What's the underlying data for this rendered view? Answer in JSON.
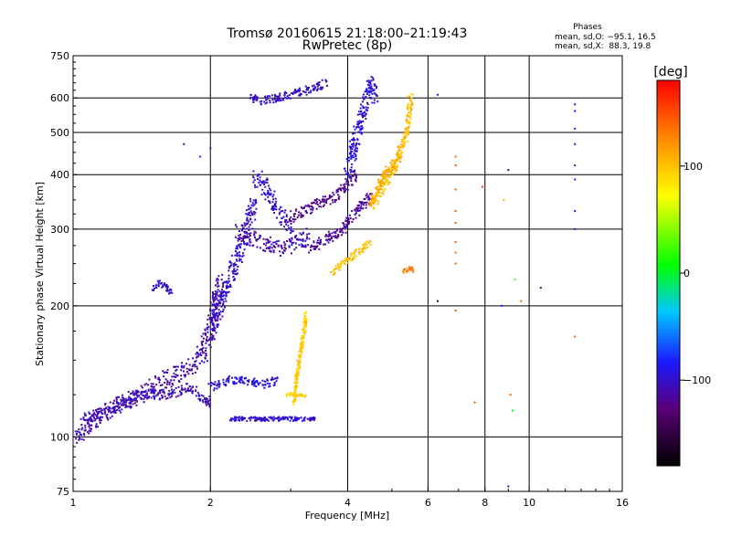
{
  "chart_data": {
    "type": "scatter",
    "title": "Tromsø 20160615 21:18:00–21:19:43",
    "subtitle": "RwPretec (8p)",
    "xlabel": "Frequency [MHz]",
    "ylabel": "Stationary phase Virtual Height [km]",
    "x_scale": "log",
    "y_scale": "log",
    "xlim": [
      1,
      16
    ],
    "ylim": [
      75,
      750
    ],
    "x_ticks": [
      1,
      2,
      4,
      6,
      8,
      10,
      16
    ],
    "y_ticks": [
      75,
      100,
      200,
      300,
      400,
      500,
      600,
      750
    ],
    "grid": true,
    "stats": {
      "heading": "Phases",
      "o_line": "mean, sd,O: −95.1, 16.5",
      "x_line": "mean, sd,X:  88.3, 19.8"
    },
    "colorbar": {
      "label": "[deg]",
      "range": [
        -180,
        180
      ],
      "ticks": [
        "100",
        "0",
        "−100"
      ],
      "tick_values": [
        100,
        0,
        -100
      ],
      "colors": [
        "#000000",
        "#5a007a",
        "#1a1aff",
        "#00c8ff",
        "#00ff00",
        "#ffff00",
        "#ff8800",
        "#ff0000"
      ]
    },
    "traces": [
      {
        "x": [
          1.0,
          1.15,
          1.3,
          1.5,
          1.7,
          1.9,
          2.0,
          2.1
        ],
        "y": [
          100,
          112,
          120,
          130,
          140,
          150,
          175,
          230
        ],
        "phase": -110,
        "spread": 9
      },
      {
        "x": [
          1.05,
          1.2,
          1.4,
          1.6,
          1.8,
          2.0
        ],
        "y": [
          110,
          115,
          125,
          125,
          130,
          120
        ],
        "phase": -105,
        "spread": 5
      },
      {
        "x": [
          2.0,
          2.1,
          2.2,
          2.3,
          2.4,
          2.5
        ],
        "y": [
          175,
          200,
          230,
          260,
          300,
          350
        ],
        "phase": -100,
        "spread": 8
      },
      {
        "x": [
          2.5,
          2.6,
          2.7,
          2.8,
          2.9,
          3.0
        ],
        "y": [
          400,
          380,
          360,
          330,
          320,
          300
        ],
        "phase": -100,
        "spread": 8
      },
      {
        "x": [
          2.3,
          2.5,
          2.7,
          2.9,
          3.1,
          3.3
        ],
        "y": [
          300,
          280,
          275,
          270,
          280,
          290
        ],
        "phase": -108,
        "spread": 8
      },
      {
        "x": [
          3.0,
          3.2,
          3.4,
          3.6,
          3.8,
          4.0,
          4.2
        ],
        "y": [
          320,
          330,
          340,
          350,
          360,
          380,
          400
        ],
        "phase": -120,
        "spread": 6
      },
      {
        "x": [
          3.3,
          3.5,
          3.7,
          3.9,
          4.1,
          4.3,
          4.5
        ],
        "y": [
          270,
          280,
          290,
          300,
          320,
          340,
          360
        ],
        "phase": -115,
        "spread": 5
      },
      {
        "x": [
          4.0,
          4.1,
          4.2,
          4.3,
          4.4,
          4.5,
          4.6
        ],
        "y": [
          400,
          450,
          500,
          550,
          600,
          650,
          600
        ],
        "phase": -95,
        "spread": 7
      },
      {
        "x": [
          2.45,
          2.6,
          2.8,
          3.0,
          3.2,
          3.4,
          3.6
        ],
        "y": [
          600,
          590,
          600,
          610,
          620,
          635,
          650
        ],
        "phase": -100,
        "spread": 4
      },
      {
        "x": [
          2.0,
          2.2,
          2.4,
          2.6,
          2.8
        ],
        "y": [
          130,
          135,
          135,
          132,
          135
        ],
        "phase": -95,
        "spread": 4
      },
      {
        "x": [
          2.2,
          2.4,
          2.6,
          2.8,
          3.0,
          3.2,
          3.4
        ],
        "y": [
          110,
          110,
          110,
          110,
          110,
          110,
          110
        ],
        "phase": -100,
        "spread": 2
      },
      {
        "x": [
          1.5,
          1.55,
          1.6,
          1.65
        ],
        "y": [
          220,
          225,
          220,
          215
        ],
        "phase": -95,
        "spread": 3
      },
      {
        "x": [
          4.5,
          4.6,
          4.7,
          4.8,
          5.0,
          5.2,
          5.4,
          5.5
        ],
        "y": [
          340,
          350,
          360,
          380,
          400,
          450,
          500,
          600
        ],
        "phase": 100,
        "spread": 5
      },
      {
        "x": [
          4.5,
          4.6,
          4.8,
          5.0,
          5.2
        ],
        "y": [
          340,
          360,
          400,
          420,
          440
        ],
        "phase": 110,
        "spread": 4
      },
      {
        "x": [
          3.05,
          3.1,
          3.15,
          3.2,
          3.25
        ],
        "y": [
          120,
          140,
          155,
          170,
          195
        ],
        "phase": 95,
        "spread": 3
      },
      {
        "x": [
          2.95,
          3.05,
          3.15,
          3.25
        ],
        "y": [
          125,
          125,
          125,
          125
        ],
        "phase": 90,
        "spread": 2
      },
      {
        "x": [
          3.7,
          3.9,
          4.1,
          4.3,
          4.5
        ],
        "y": [
          240,
          250,
          260,
          270,
          280
        ],
        "phase": 100,
        "spread": 4
      },
      {
        "x": [
          5.3,
          5.4,
          5.5,
          5.6
        ],
        "y": [
          240,
          242,
          244,
          240
        ],
        "phase": 130,
        "spread": 2
      }
    ],
    "sparse_points": [
      {
        "x": 6.3,
        "y": 205,
        "phase": -150
      },
      {
        "x": 6.3,
        "y": 610,
        "phase": -90
      },
      {
        "x": 6.9,
        "y": 440,
        "phase": 140
      },
      {
        "x": 6.9,
        "y": 420,
        "phase": 150
      },
      {
        "x": 6.9,
        "y": 370,
        "phase": 145
      },
      {
        "x": 6.9,
        "y": 330,
        "phase": 150
      },
      {
        "x": 6.9,
        "y": 310,
        "phase": 140
      },
      {
        "x": 6.9,
        "y": 280,
        "phase": 150
      },
      {
        "x": 6.9,
        "y": 265,
        "phase": 140
      },
      {
        "x": 6.9,
        "y": 250,
        "phase": 145
      },
      {
        "x": 6.9,
        "y": 195,
        "phase": 150
      },
      {
        "x": 7.6,
        "y": 120,
        "phase": 150
      },
      {
        "x": 7.9,
        "y": 375,
        "phase": 150
      },
      {
        "x": 8.7,
        "y": 200,
        "phase": -90
      },
      {
        "x": 8.8,
        "y": 350,
        "phase": 110
      },
      {
        "x": 9.0,
        "y": 410,
        "phase": -120
      },
      {
        "x": 9.1,
        "y": 125,
        "phase": 140
      },
      {
        "x": 9.2,
        "y": 115,
        "phase": 0
      },
      {
        "x": 9.3,
        "y": 230,
        "phase": 30
      },
      {
        "x": 9.6,
        "y": 205,
        "phase": 140
      },
      {
        "x": 10.6,
        "y": 220,
        "phase": -120
      },
      {
        "x": 12.6,
        "y": 580,
        "phase": -90
      },
      {
        "x": 12.6,
        "y": 560,
        "phase": -90
      },
      {
        "x": 12.6,
        "y": 510,
        "phase": -100
      },
      {
        "x": 12.6,
        "y": 470,
        "phase": -100
      },
      {
        "x": 12.6,
        "y": 420,
        "phase": -110
      },
      {
        "x": 12.6,
        "y": 390,
        "phase": -90
      },
      {
        "x": 12.6,
        "y": 330,
        "phase": -100
      },
      {
        "x": 12.6,
        "y": 300,
        "phase": -100
      },
      {
        "x": 12.6,
        "y": 170,
        "phase": 150
      },
      {
        "x": 9.0,
        "y": 77,
        "phase": -90
      },
      {
        "x": 1.9,
        "y": 440,
        "phase": -80
      },
      {
        "x": 2.0,
        "y": 460,
        "phase": -90
      },
      {
        "x": 1.75,
        "y": 470,
        "phase": -110
      }
    ]
  }
}
